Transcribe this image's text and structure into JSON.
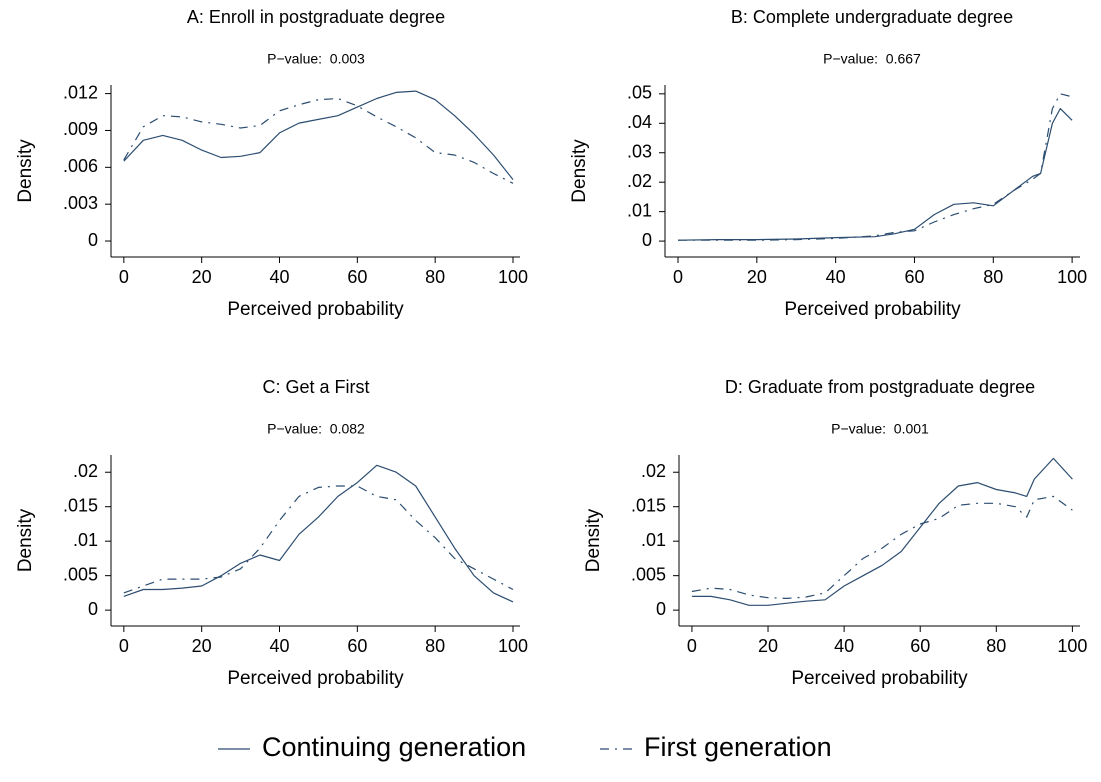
{
  "chart_data": [
    {
      "type": "line",
      "title": "A: Enroll in postgraduate degree",
      "subtitle": "P−value:  0.003",
      "x_label": "Perceived probability",
      "y_label": "Density",
      "x": [
        0,
        5,
        10,
        15,
        20,
        25,
        30,
        35,
        40,
        45,
        50,
        55,
        60,
        65,
        70,
        75,
        80,
        85,
        90,
        95,
        100
      ],
      "series": [
        {
          "name": "Continuing generation",
          "color": "#2c4d70",
          "dash": "solid",
          "values": [
            0.0065,
            0.0082,
            0.0086,
            0.0082,
            0.0074,
            0.0068,
            0.0069,
            0.0072,
            0.0088,
            0.0096,
            0.0099,
            0.0102,
            0.0109,
            0.0116,
            0.0121,
            0.0122,
            0.0115,
            0.0102,
            0.0087,
            0.007,
            0.005
          ]
        },
        {
          "name": "First generation",
          "color": "#2c4d70",
          "dash": "dashed",
          "values": [
            0.0066,
            0.0093,
            0.0102,
            0.0101,
            0.0097,
            0.0095,
            0.0092,
            0.0094,
            0.0106,
            0.0111,
            0.0115,
            0.0116,
            0.011,
            0.0101,
            0.0093,
            0.0084,
            0.0072,
            0.007,
            0.0064,
            0.0055,
            0.0047
          ]
        }
      ],
      "xlim": [
        -3.3,
        101.8
      ],
      "ylim": [
        -0.0013,
        0.0127
      ],
      "xticks": [
        0,
        20,
        40,
        60,
        80,
        100
      ],
      "yticks": [
        0,
        {
          "value": 0.003,
          "label": ".003"
        },
        {
          "value": 0.006,
          "label": ".006"
        },
        {
          "value": 0.009,
          "label": ".009"
        },
        {
          "value": 0.012,
          "label": ".012"
        }
      ]
    },
    {
      "type": "line",
      "title": "B: Complete undergraduate degree",
      "subtitle": "P−value:  0.667",
      "x_label": "Perceived probability",
      "y_label": "Density",
      "x": [
        0,
        10,
        20,
        30,
        40,
        50,
        55,
        60,
        65,
        70,
        75,
        80,
        85,
        90,
        92,
        95,
        97,
        100
      ],
      "series": [
        {
          "name": "Continuing generation",
          "color": "#2c4d70",
          "dash": "solid",
          "values": [
            0.0003,
            0.0005,
            0.0005,
            0.0007,
            0.0012,
            0.0015,
            0.0025,
            0.004,
            0.009,
            0.0125,
            0.013,
            0.012,
            0.017,
            0.022,
            0.023,
            0.04,
            0.045,
            0.041
          ]
        },
        {
          "name": "First generation",
          "color": "#2c4d70",
          "dash": "dashed",
          "values": [
            0.0003,
            0.0003,
            0.0003,
            0.0005,
            0.0009,
            0.0018,
            0.003,
            0.0035,
            0.0065,
            0.009,
            0.011,
            0.0125,
            0.017,
            0.021,
            0.023,
            0.045,
            0.05,
            0.049
          ]
        }
      ],
      "xlim": [
        -3.3,
        102
      ],
      "ylim": [
        -0.0054,
        0.053
      ],
      "xticks": [
        0,
        20,
        40,
        60,
        80,
        100
      ],
      "yticks": [
        0,
        {
          "value": 0.01,
          "label": ".01"
        },
        {
          "value": 0.02,
          "label": ".02"
        },
        {
          "value": 0.03,
          "label": ".03"
        },
        {
          "value": 0.04,
          "label": ".04"
        },
        {
          "value": 0.05,
          "label": ".05"
        }
      ]
    },
    {
      "type": "line",
      "title": "C: Get a First",
      "subtitle": "P−value:  0.082",
      "x_label": "Perceived probability",
      "y_label": "Density",
      "x": [
        0,
        5,
        10,
        15,
        20,
        25,
        30,
        35,
        40,
        45,
        50,
        55,
        60,
        65,
        70,
        75,
        80,
        85,
        90,
        95,
        100
      ],
      "series": [
        {
          "name": "Continuing generation",
          "color": "#2c4d70",
          "dash": "solid",
          "values": [
            0.002,
            0.003,
            0.003,
            0.0032,
            0.0035,
            0.005,
            0.0068,
            0.008,
            0.0072,
            0.011,
            0.0135,
            0.0165,
            0.0185,
            0.021,
            0.02,
            0.018,
            0.0135,
            0.009,
            0.005,
            0.0025,
            0.0012
          ]
        },
        {
          "name": "First generation",
          "color": "#2c4d70",
          "dash": "dashed",
          "values": [
            0.0025,
            0.0035,
            0.0045,
            0.0045,
            0.0045,
            0.0048,
            0.006,
            0.009,
            0.013,
            0.0165,
            0.0178,
            0.018,
            0.018,
            0.0165,
            0.016,
            0.013,
            0.0105,
            0.0075,
            0.006,
            0.0045,
            0.003
          ]
        }
      ],
      "xlim": [
        -3.3,
        101.8
      ],
      "ylim": [
        -0.0023,
        0.0225
      ],
      "xticks": [
        0,
        20,
        40,
        60,
        80,
        100
      ],
      "yticks": [
        0,
        {
          "value": 0.005,
          "label": ".005"
        },
        {
          "value": 0.01,
          "label": ".01"
        },
        {
          "value": 0.015,
          "label": ".015"
        },
        {
          "value": 0.02,
          "label": ".02"
        }
      ]
    },
    {
      "type": "line",
      "title": "D: Graduate from postgraduate degree",
      "subtitle": "P−value:  0.001",
      "x_label": "Perceived probability",
      "y_label": "Density",
      "x": [
        0,
        5,
        10,
        15,
        20,
        25,
        30,
        35,
        40,
        45,
        50,
        55,
        60,
        65,
        70,
        75,
        80,
        85,
        88,
        90,
        95,
        100
      ],
      "series": [
        {
          "name": "Continuing generation",
          "color": "#2c4d70",
          "dash": "solid",
          "values": [
            0.002,
            0.002,
            0.0015,
            0.0007,
            0.0007,
            0.001,
            0.0013,
            0.0015,
            0.0035,
            0.005,
            0.0065,
            0.0085,
            0.012,
            0.0155,
            0.018,
            0.0185,
            0.0175,
            0.017,
            0.0165,
            0.019,
            0.022,
            0.019
          ]
        },
        {
          "name": "First generation",
          "color": "#2c4d70",
          "dash": "dashed",
          "values": [
            0.0027,
            0.0032,
            0.003,
            0.0022,
            0.0018,
            0.0017,
            0.0019,
            0.0025,
            0.005,
            0.0075,
            0.009,
            0.011,
            0.0125,
            0.0133,
            0.0152,
            0.0155,
            0.0155,
            0.015,
            0.0135,
            0.016,
            0.0165,
            0.0145
          ]
        }
      ],
      "xlim": [
        -3.4,
        102
      ],
      "ylim": [
        -0.0023,
        0.0225
      ],
      "xticks": [
        0,
        20,
        40,
        60,
        80,
        100
      ],
      "yticks": [
        0,
        {
          "value": 0.005,
          "label": ".005"
        },
        {
          "value": 0.01,
          "label": ".01"
        },
        {
          "value": 0.015,
          "label": ".015"
        },
        {
          "value": 0.02,
          "label": ".02"
        }
      ]
    }
  ]
}
